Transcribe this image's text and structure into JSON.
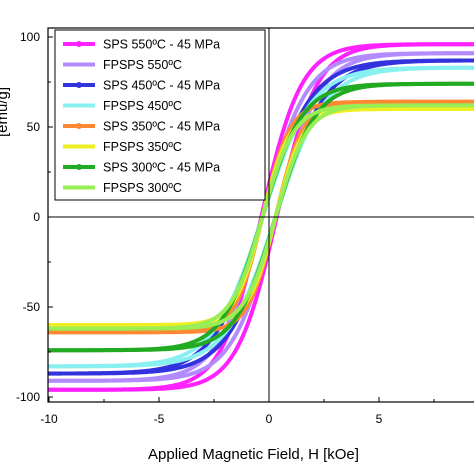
{
  "chart_data": {
    "type": "line",
    "title": "",
    "xlabel": "Applied Magnetic Field, H [kOe]",
    "ylabel_fragment": "[emu/g]",
    "xlim": [
      -10,
      9
    ],
    "ylim": [
      -105,
      105
    ],
    "xticks": [
      -10,
      -5,
      0,
      5
    ],
    "yticks": [
      -100,
      -50,
      0,
      50,
      100
    ],
    "grid": false,
    "legend_position": "top-left",
    "series": [
      {
        "name": "SPS 550ºC - 45 MPa",
        "color": "#ff22ff",
        "marker": "circle",
        "ms": 96,
        "hc": 0.35,
        "k": 0.55
      },
      {
        "name": "FPSPS 550ºC",
        "color": "#b28cff",
        "marker": "none",
        "ms": 91,
        "hc": 0.3,
        "k": 0.5
      },
      {
        "name": "SPS 450ºC - 45 MPa",
        "color": "#3333dd",
        "marker": "circle",
        "ms": 87,
        "hc": 0.3,
        "k": 0.45
      },
      {
        "name": "FPSPS 450ºC",
        "color": "#88f0f0",
        "marker": "none",
        "ms": 83,
        "hc": 0.3,
        "k": 0.45
      },
      {
        "name": "SPS 350ºC - 45 MPa",
        "color": "#ff8833",
        "marker": "circle",
        "ms": 64,
        "hc": 0.3,
        "k": 0.8
      },
      {
        "name": "FPSPS 350ºC",
        "color": "#eeee22",
        "marker": "none",
        "ms": 60,
        "hc": 0.3,
        "k": 0.8
      },
      {
        "name": "SPS 300ºC - 45 MPa",
        "color": "#22aa22",
        "marker": "circle",
        "ms": 74,
        "hc": 0.3,
        "k": 0.55
      },
      {
        "name": "FPSPS 300ºC",
        "color": "#99ee55",
        "marker": "none",
        "ms": 62,
        "hc": 0.3,
        "k": 0.7
      }
    ]
  }
}
